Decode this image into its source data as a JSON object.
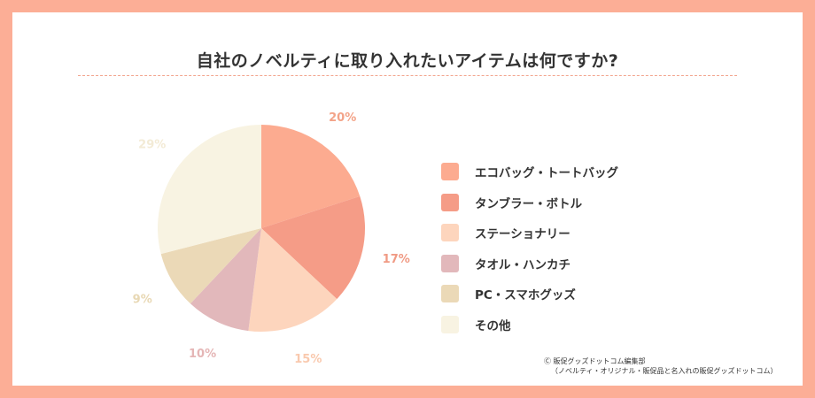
{
  "title": "自社のノベルティに取り入れたいアイテムは何ですか?",
  "chart_data": {
    "type": "pie",
    "categories": [
      "エコバッグ・トートバッグ",
      "タンブラー・ボトル",
      "ステーショナリー",
      "タオル・ハンカチ",
      "PC・スマホグッズ",
      "その他"
    ],
    "values": [
      20,
      17,
      15,
      10,
      9,
      29
    ],
    "value_labels": [
      "20%",
      "17%",
      "15%",
      "10%",
      "9%",
      "29%"
    ],
    "colors": [
      "#fcab90",
      "#f59c87",
      "#fdd5bd",
      "#e2b8bb",
      "#ebd9b7",
      "#f8f3e2"
    ],
    "label_colors": [
      "#f3a388",
      "#f09a84",
      "#f9c9ae",
      "#e5b6b6",
      "#e8d8b4",
      "#f3ebd6"
    ],
    "start_angle_deg": 0,
    "direction": "clockwise",
    "legend_position": "right"
  },
  "credit": {
    "line1": "Ⓒ 販促グッズドットコム編集部",
    "line2": "（ノベルティ・オリジナル・販促品と名入れの販促グッズドットコム）"
  }
}
